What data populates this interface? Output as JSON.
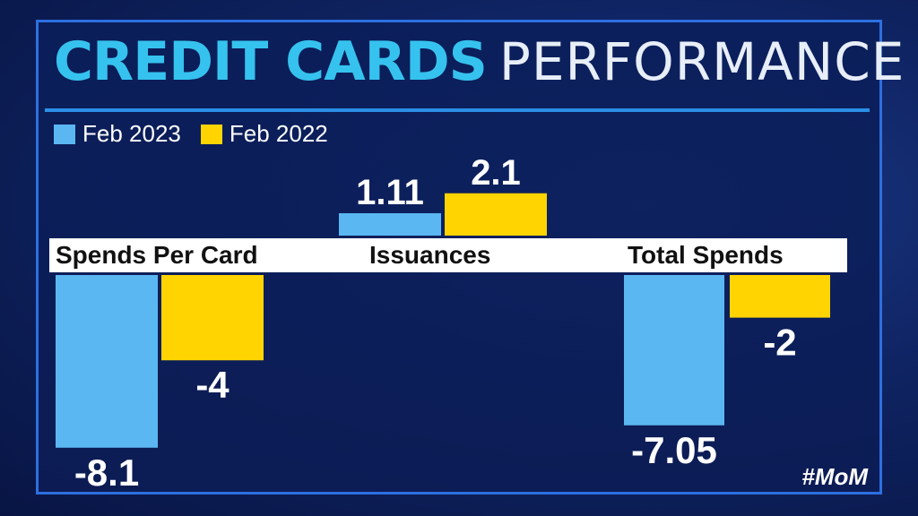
{
  "title": {
    "main": "CREDIT CARDS",
    "sub": "PERFORMANCE"
  },
  "legend": [
    {
      "label": "Feb 2023",
      "color": "#5bb7f2"
    },
    {
      "label": "Feb 2022",
      "color": "#ffd400"
    }
  ],
  "hashtag": "#MoM",
  "chart_data": {
    "type": "bar",
    "categories": [
      "Spends Per Card",
      "Issuances",
      "Total Spends"
    ],
    "series": [
      {
        "name": "Feb 2023",
        "values": [
          -8.1,
          1.11,
          -7.05
        ],
        "labels": [
          "-8.1",
          "1.11",
          "-7.05"
        ],
        "color": "#5bb7f2"
      },
      {
        "name": "Feb 2022",
        "values": [
          -4,
          2.1,
          -2
        ],
        "labels": [
          "-4",
          "2.1",
          "-2"
        ],
        "color": "#ffd400"
      }
    ],
    "legend_position": "top-left",
    "grid": false
  }
}
